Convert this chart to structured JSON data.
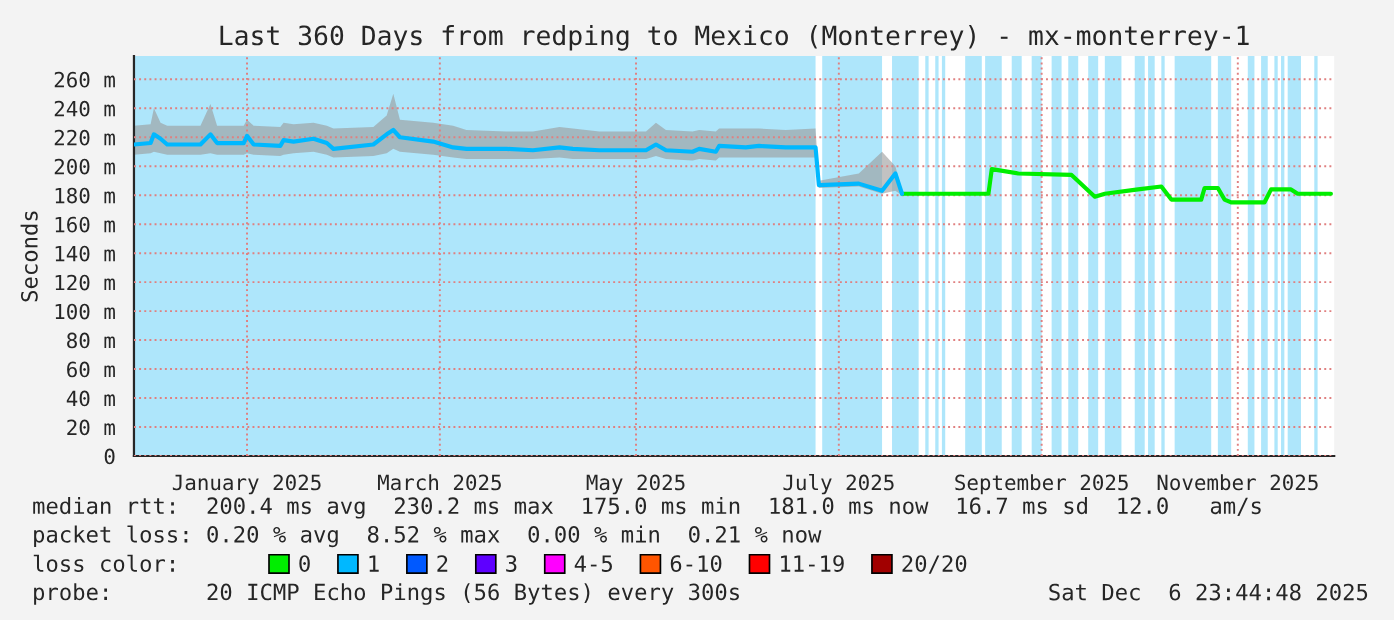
{
  "chart_data": {
    "type": "line",
    "title": "Last 360 Days from redping to Mexico (Monterrey) - mx-monterrey-1",
    "ylabel": "Seconds",
    "xlim": [
      "2024-12-11",
      "2025-12-06T23:44"
    ],
    "xticks": [
      {
        "value": "2025-01-14",
        "label": "January 2025"
      },
      {
        "value": "2025-03-13",
        "label": "March 2025"
      },
      {
        "value": "2025-05-11",
        "label": "May 2025"
      },
      {
        "value": "2025-07-11",
        "label": "July 2025"
      },
      {
        "value": "2025-09-10",
        "label": "September 2025"
      },
      {
        "value": "2025-11-08",
        "label": "November 2025"
      }
    ],
    "ylim": [
      0,
      276
    ],
    "yticks": [
      0,
      {
        "value": 20,
        "label": "20 m"
      },
      {
        "value": 40,
        "label": "40 m"
      },
      {
        "value": 60,
        "label": "60 m"
      },
      {
        "value": 80,
        "label": "80 m"
      },
      {
        "value": 100,
        "label": "100 m"
      },
      {
        "value": 120,
        "label": "120 m"
      },
      {
        "value": 140,
        "label": "140 m"
      },
      {
        "value": 160,
        "label": "160 m"
      },
      {
        "value": 180,
        "label": "180 m"
      },
      {
        "value": 200,
        "label": "200 m"
      },
      {
        "value": 220,
        "label": "220 m"
      },
      {
        "value": 240,
        "label": "240 m"
      },
      {
        "value": 260,
        "label": "260 m"
      }
    ],
    "grid": true,
    "legend": "bottom",
    "legend_title": "loss color:",
    "series": [
      {
        "name": "0",
        "color": "#00ee00",
        "x": [
          "2025-07-30",
          "2025-08-25",
          "2025-08-26",
          "2025-09-03",
          "2025-09-19",
          "2025-09-26",
          "2025-09-29",
          "2025-10-09",
          "2025-10-16",
          "2025-10-19",
          "2025-10-28",
          "2025-10-29",
          "2025-11-02",
          "2025-11-04",
          "2025-11-06",
          "2025-11-16",
          "2025-11-18",
          "2025-11-24",
          "2025-11-26",
          "2025-12-06"
        ],
        "values": [
          181,
          181,
          198,
          195,
          194,
          179,
          181,
          184,
          186,
          177,
          177,
          185,
          185,
          177,
          175,
          175,
          184,
          184,
          181,
          181
        ]
      },
      {
        "name": "1",
        "color": "#00b8ff",
        "x": [
          "2024-12-11",
          "2024-12-16",
          "2024-12-17",
          "2024-12-19",
          "2024-12-21",
          "2024-12-31",
          "2025-01-03",
          "2025-01-05",
          "2025-01-13",
          "2025-01-14",
          "2025-01-16",
          "2025-01-24",
          "2025-01-25",
          "2025-01-28",
          "2025-02-03",
          "2025-02-07",
          "2025-02-09",
          "2025-02-21",
          "2025-02-25",
          "2025-02-27",
          "2025-03-01",
          "2025-03-11",
          "2025-03-17",
          "2025-03-21",
          "2025-04-02",
          "2025-04-10",
          "2025-04-18",
          "2025-04-22",
          "2025-04-30",
          "2025-05-14",
          "2025-05-17",
          "2025-05-20",
          "2025-05-28",
          "2025-05-30",
          "2025-06-04",
          "2025-06-05",
          "2025-06-13",
          "2025-06-17",
          "2025-06-25",
          "2025-07-04",
          "2025-07-05",
          "2025-07-17",
          "2025-07-24",
          "2025-07-28",
          "2025-07-30"
        ],
        "values": [
          215,
          216,
          222,
          219,
          215,
          215,
          222,
          216,
          216,
          221,
          215,
          214,
          218,
          217,
          219,
          216,
          212,
          215,
          222,
          225,
          220,
          217,
          213,
          212,
          212,
          211,
          213,
          212,
          211,
          211,
          215,
          211,
          210,
          212,
          210,
          214,
          213,
          214,
          213,
          213,
          187,
          188,
          183,
          195,
          181
        ],
        "lower": [
          208,
          209,
          210,
          209,
          208,
          208,
          209,
          208,
          208,
          209,
          208,
          207,
          208,
          209,
          210,
          208,
          206,
          207,
          209,
          212,
          210,
          208,
          206,
          205,
          205,
          205,
          206,
          205,
          205,
          205,
          207,
          205,
          204,
          205,
          204,
          206,
          206,
          206,
          206,
          206,
          185,
          186,
          181,
          183,
          180
        ],
        "upper": [
          228,
          229,
          240,
          230,
          228,
          228,
          243,
          228,
          228,
          232,
          228,
          227,
          230,
          229,
          230,
          228,
          226,
          227,
          235,
          250,
          232,
          230,
          228,
          225,
          224,
          224,
          227,
          226,
          224,
          224,
          230,
          225,
          224,
          225,
          224,
          226,
          226,
          226,
          225,
          226,
          190,
          195,
          210,
          200,
          183
        ]
      },
      {
        "name": "2",
        "color": "#0059ff"
      },
      {
        "name": "3",
        "color": "#5e00ff"
      },
      {
        "name": "4-5",
        "color": "#ff00ff"
      },
      {
        "name": "6-10",
        "color": "#ff5500"
      },
      {
        "name": "11-19",
        "color": "#ff0000"
      },
      {
        "name": "20/20",
        "color": "#a10000"
      }
    ],
    "bands": [
      {
        "axis": "x",
        "from": "2024-12-11",
        "to": "2025-07-04",
        "color": "#aee6fb"
      },
      {
        "axis": "x",
        "from": "2025-07-06",
        "to": "2025-07-24",
        "color": "#aee6fb"
      },
      {
        "axis": "x",
        "from": "2025-07-27",
        "to": "2025-08-04",
        "color": "#aee6fb"
      },
      {
        "axis": "x",
        "from": "2025-08-06",
        "to": "2025-08-07",
        "color": "#aee6fb"
      },
      {
        "axis": "x",
        "from": "2025-08-09",
        "to": "2025-08-10",
        "color": "#aee6fb"
      },
      {
        "axis": "x",
        "from": "2025-08-11",
        "to": "2025-08-12",
        "color": "#aee6fb"
      },
      {
        "axis": "x",
        "from": "2025-08-18",
        "to": "2025-08-23",
        "color": "#aee6fb"
      },
      {
        "axis": "x",
        "from": "2025-08-24",
        "to": "2025-08-29",
        "color": "#aee6fb"
      },
      {
        "axis": "x",
        "from": "2025-09-01",
        "to": "2025-09-04",
        "color": "#aee6fb"
      },
      {
        "axis": "x",
        "from": "2025-09-07",
        "to": "2025-09-10",
        "color": "#aee6fb"
      },
      {
        "axis": "x",
        "from": "2025-09-13",
        "to": "2025-09-16",
        "color": "#aee6fb"
      },
      {
        "axis": "x",
        "from": "2025-09-18",
        "to": "2025-09-21",
        "color": "#aee6fb"
      },
      {
        "axis": "x",
        "from": "2025-09-24",
        "to": "2025-09-27",
        "color": "#aee6fb"
      },
      {
        "axis": "x",
        "from": "2025-09-29",
        "to": "2025-10-04",
        "color": "#aee6fb"
      },
      {
        "axis": "x",
        "from": "2025-10-08",
        "to": "2025-10-11",
        "color": "#aee6fb"
      },
      {
        "axis": "x",
        "from": "2025-10-12",
        "to": "2025-10-14",
        "color": "#aee6fb"
      },
      {
        "axis": "x",
        "from": "2025-10-16",
        "to": "2025-10-17",
        "color": "#aee6fb"
      },
      {
        "axis": "x",
        "from": "2025-10-20",
        "to": "2025-10-31",
        "color": "#aee6fb"
      },
      {
        "axis": "x",
        "from": "2025-11-02",
        "to": "2025-11-06",
        "color": "#aee6fb"
      },
      {
        "axis": "x",
        "from": "2025-11-11",
        "to": "2025-11-13",
        "color": "#aee6fb"
      },
      {
        "axis": "x",
        "from": "2025-11-15",
        "to": "2025-11-17",
        "color": "#aee6fb"
      },
      {
        "axis": "x",
        "from": "2025-11-19",
        "to": "2025-11-20",
        "color": "#aee6fb"
      },
      {
        "axis": "x",
        "from": "2025-11-21",
        "to": "2025-11-22",
        "color": "#aee6fb"
      },
      {
        "axis": "x",
        "from": "2025-11-23",
        "to": "2025-11-27",
        "color": "#aee6fb"
      },
      {
        "axis": "x",
        "from": "2025-12-01",
        "to": "2025-12-02",
        "color": "#aee6fb"
      }
    ],
    "annotations": [
      "median rtt:  200.4 ms avg  230.2 ms max  175.0 ms min  181.0 ms now  16.7 ms sd  12.0   am/s",
      "packet loss: 0.20 % avg  8.52 % max  0.00 % min  0.21 % now",
      "probe:       20 ICMP Echo Pings (56 Bytes) every 300s",
      "Sat Dec  6 23:44:48 2025"
    ]
  }
}
